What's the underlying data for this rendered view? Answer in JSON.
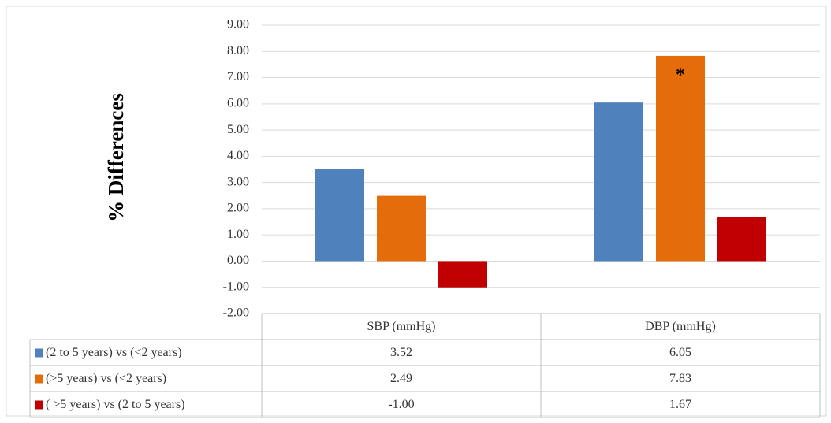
{
  "chart_data": {
    "type": "bar",
    "y_label": "% Differences",
    "categories": [
      "SBP (mmHg)",
      "DBP (mmHg)"
    ],
    "series": [
      {
        "name": "(2 to 5 years) vs (<2 years)",
        "color": "#4f81bd",
        "values": [
          3.52,
          6.05
        ],
        "value_labels": [
          "3.52",
          "6.05"
        ]
      },
      {
        "name": "(>5 years) vs (<2 years)",
        "color": "#e46c0a",
        "values": [
          2.49,
          7.83
        ],
        "value_labels": [
          "2.49",
          "7.83"
        ]
      },
      {
        "name": "( >5 years) vs (2 to 5 years)",
        "color": "#c00000",
        "values": [
          -1,
          1.67
        ],
        "value_labels": [
          "-1.00",
          "1.67"
        ]
      }
    ],
    "annotations": [
      {
        "text": "*",
        "series": 1,
        "category": 1
      }
    ],
    "ylim": [
      -2,
      9
    ],
    "yticks": [
      {
        "value": -2,
        "label": "-2.00"
      },
      {
        "value": -1,
        "label": "-1.00"
      },
      {
        "value": 0,
        "label": "0.00"
      },
      {
        "value": 1,
        "label": "1.00"
      },
      {
        "value": 2,
        "label": "2.00"
      },
      {
        "value": 3,
        "label": "3.00"
      },
      {
        "value": 4,
        "label": "4.00"
      },
      {
        "value": 5,
        "label": "5.00"
      },
      {
        "value": 6,
        "label": "6.00"
      },
      {
        "value": 7,
        "label": "7.00"
      },
      {
        "value": 8,
        "label": "8.00"
      },
      {
        "value": 9,
        "label": "9.00"
      }
    ],
    "grid": true,
    "legend": "data-table"
  }
}
